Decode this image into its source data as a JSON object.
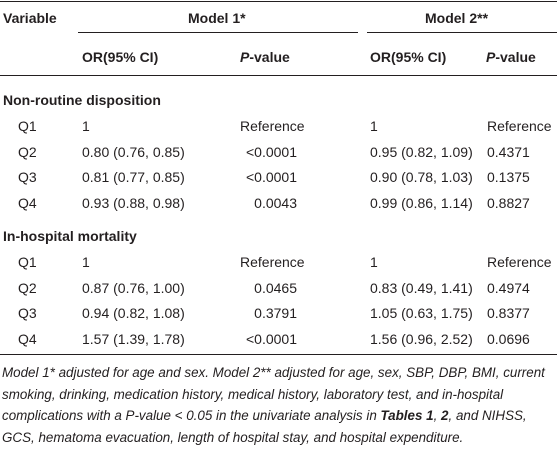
{
  "header": {
    "variable": "Variable",
    "model1": "Model 1*",
    "model2": "Model 2**",
    "or1": "OR(95% CI)",
    "p1": "P-value",
    "or2": "OR(95% CI)",
    "p2": "P-value"
  },
  "sections": [
    {
      "title": "Non-routine disposition",
      "rows": [
        [
          "Q1",
          "1",
          "Reference",
          "1",
          "Reference"
        ],
        [
          "Q2",
          "0.80 (0.76, 0.85)",
          "<0.0001",
          "0.95 (0.82, 1.09)",
          "0.4371"
        ],
        [
          "Q3",
          "0.81 (0.77, 0.85)",
          "<0.0001",
          "0.90 (0.78, 1.03)",
          "0.1375"
        ],
        [
          "Q4",
          "0.93 (0.88, 0.98)",
          "0.0043",
          "0.99 (0.86, 1.14)",
          "0.8827"
        ]
      ]
    },
    {
      "title": "In-hospital mortality",
      "rows": [
        [
          "Q1",
          "1",
          "Reference",
          "1",
          "Reference"
        ],
        [
          "Q2",
          "0.87 (0.76, 1.00)",
          "0.0465",
          "0.83 (0.49, 1.41)",
          "0.4974"
        ],
        [
          "Q3",
          "0.94 (0.82, 1.08)",
          "0.3791",
          "1.05 (0.63, 1.75)",
          "0.8377"
        ],
        [
          "Q4",
          "1.57 (1.39, 1.78)",
          "<0.0001",
          "1.56 (0.96, 2.52)",
          "0.0696"
        ]
      ]
    }
  ],
  "footnote": [
    "Model 1* adjusted for age and sex. Model 2** adjusted for age, sex, SBP, DBP, BMI, current smoking, drinking, medication history, medical history, laboratory test, and in-hospital complications with a P-value < 0.05 in the univariate analysis in ",
    "Tables 1",
    ", ",
    "2",
    ", and NIHSS, GCS, hematoma evacuation, length of hospital stay, and hospital expenditure."
  ]
}
